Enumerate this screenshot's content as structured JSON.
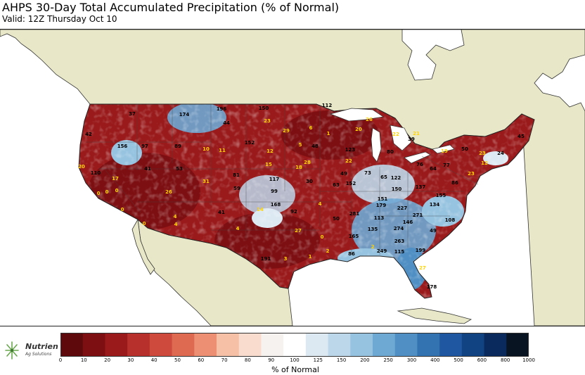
{
  "header": {
    "title": "AHPS 30-Day Total Accumulated Precipitation (% of Normal)",
    "subtitle": "Valid: 12Z Thursday Oct 10"
  },
  "logo": {
    "name": "Nutrien",
    "tagline": "Ag Solutions"
  },
  "legend": {
    "title": "% of Normal",
    "ticks": [
      "0",
      "10",
      "20",
      "30",
      "40",
      "50",
      "60",
      "70",
      "80",
      "90",
      "100",
      "125",
      "150",
      "200",
      "250",
      "300",
      "400",
      "500",
      "600",
      "800",
      "1000"
    ],
    "colors": [
      "#5e0a0d",
      "#7d0f12",
      "#9a1a1b",
      "#b7302c",
      "#cd4a3d",
      "#de6a52",
      "#ec8f73",
      "#f5c0a5",
      "#f9dccd",
      "#f6f2ef",
      "#ffffff",
      "#dde9f2",
      "#bcd7ea",
      "#96c3e0",
      "#6ea9d4",
      "#4f8fc4",
      "#3373b2",
      "#1f58a0",
      "#114281",
      "#0a2a5d",
      "#081422"
    ]
  },
  "map": {
    "land_color": "#e8e8c8",
    "water_color": "#ffffff",
    "station_labels": [
      {
        "text": "174",
        "color": "#000"
      },
      {
        "text": "196",
        "color": "#000"
      },
      {
        "text": "150",
        "color": "#000"
      },
      {
        "text": "112",
        "color": "#000"
      },
      {
        "text": "37",
        "color": "#000"
      },
      {
        "text": "44",
        "color": "#000"
      },
      {
        "text": "23",
        "color": "#ffd400"
      },
      {
        "text": "29",
        "color": "#ffd400"
      },
      {
        "text": "6",
        "color": "#ffd400"
      },
      {
        "text": "1",
        "color": "#ffd400"
      },
      {
        "text": "20",
        "color": "#ffd400"
      },
      {
        "text": "26",
        "color": "#ffd400"
      },
      {
        "text": "22",
        "color": "#ffd400"
      },
      {
        "text": "21",
        "color": "#ffd400"
      },
      {
        "text": "42",
        "color": "#000"
      },
      {
        "text": "156",
        "color": "#000"
      },
      {
        "text": "97",
        "color": "#000"
      },
      {
        "text": "89",
        "color": "#000"
      },
      {
        "text": "10",
        "color": "#ffd400"
      },
      {
        "text": "11",
        "color": "#ffd400"
      },
      {
        "text": "152",
        "color": "#000"
      },
      {
        "text": "12",
        "color": "#ffd400"
      },
      {
        "text": "5",
        "color": "#ffd400"
      },
      {
        "text": "48",
        "color": "#000"
      },
      {
        "text": "123",
        "color": "#000"
      },
      {
        "text": "80",
        "color": "#000"
      },
      {
        "text": "39",
        "color": "#000"
      },
      {
        "text": "19",
        "color": "#ffd400"
      },
      {
        "text": "50",
        "color": "#000"
      },
      {
        "text": "23",
        "color": "#ffd400"
      },
      {
        "text": "45",
        "color": "#000"
      },
      {
        "text": "24",
        "color": "#000"
      },
      {
        "text": "12",
        "color": "#ffd400"
      },
      {
        "text": "20",
        "color": "#ffd400"
      },
      {
        "text": "110",
        "color": "#000"
      },
      {
        "text": "17",
        "color": "#ffd400"
      },
      {
        "text": "41",
        "color": "#000"
      },
      {
        "text": "53",
        "color": "#000"
      },
      {
        "text": "81",
        "color": "#000"
      },
      {
        "text": "15",
        "color": "#ffd400"
      },
      {
        "text": "18",
        "color": "#ffd400"
      },
      {
        "text": "28",
        "color": "#ffd400"
      },
      {
        "text": "49",
        "color": "#000"
      },
      {
        "text": "22",
        "color": "#ffd400"
      },
      {
        "text": "73",
        "color": "#000"
      },
      {
        "text": "65",
        "color": "#000"
      },
      {
        "text": "122",
        "color": "#000"
      },
      {
        "text": "76",
        "color": "#000"
      },
      {
        "text": "64",
        "color": "#000"
      },
      {
        "text": "77",
        "color": "#000"
      },
      {
        "text": "23",
        "color": "#ffd400"
      },
      {
        "text": "0",
        "color": "#ffd400"
      },
      {
        "text": "0",
        "color": "#ffd400"
      },
      {
        "text": "0",
        "color": "#ffd400"
      },
      {
        "text": "26",
        "color": "#ffd400"
      },
      {
        "text": "31",
        "color": "#ffd400"
      },
      {
        "text": "59",
        "color": "#000"
      },
      {
        "text": "117",
        "color": "#000"
      },
      {
        "text": "30",
        "color": "#000"
      },
      {
        "text": "63",
        "color": "#000"
      },
      {
        "text": "152",
        "color": "#000"
      },
      {
        "text": "150",
        "color": "#000"
      },
      {
        "text": "137",
        "color": "#000"
      },
      {
        "text": "155",
        "color": "#000"
      },
      {
        "text": "86",
        "color": "#000"
      },
      {
        "text": "99",
        "color": "#000"
      },
      {
        "text": "168",
        "color": "#000"
      },
      {
        "text": "14",
        "color": "#ffd400"
      },
      {
        "text": "151",
        "color": "#000"
      },
      {
        "text": "179",
        "color": "#000"
      },
      {
        "text": "227",
        "color": "#000"
      },
      {
        "text": "134",
        "color": "#000"
      },
      {
        "text": "0",
        "color": "#ffd400"
      },
      {
        "text": "4",
        "color": "#ffd400"
      },
      {
        "text": "41",
        "color": "#000"
      },
      {
        "text": "92",
        "color": "#000"
      },
      {
        "text": "4",
        "color": "#ffd400"
      },
      {
        "text": "50",
        "color": "#000"
      },
      {
        "text": "281",
        "color": "#000"
      },
      {
        "text": "271",
        "color": "#000"
      },
      {
        "text": "108",
        "color": "#000"
      },
      {
        "text": "0",
        "color": "#ffd400"
      },
      {
        "text": "4",
        "color": "#ffd400"
      },
      {
        "text": "113",
        "color": "#000"
      },
      {
        "text": "146",
        "color": "#000"
      },
      {
        "text": "4",
        "color": "#ffd400"
      },
      {
        "text": "27",
        "color": "#ffd400"
      },
      {
        "text": "135",
        "color": "#000"
      },
      {
        "text": "274",
        "color": "#000"
      },
      {
        "text": "49",
        "color": "#000"
      },
      {
        "text": "165",
        "color": "#000"
      },
      {
        "text": "0",
        "color": "#ffd400"
      },
      {
        "text": "263",
        "color": "#000"
      },
      {
        "text": "2",
        "color": "#ffd400"
      },
      {
        "text": "2",
        "color": "#ffd400"
      },
      {
        "text": "86",
        "color": "#000"
      },
      {
        "text": "249",
        "color": "#000"
      },
      {
        "text": "115",
        "color": "#000"
      },
      {
        "text": "199",
        "color": "#000"
      },
      {
        "text": "191",
        "color": "#000"
      },
      {
        "text": "3",
        "color": "#ffd400"
      },
      {
        "text": "1",
        "color": "#ffd400"
      },
      {
        "text": "27",
        "color": "#ffd400"
      },
      {
        "text": "178",
        "color": "#000"
      },
      {
        "text": "85",
        "color": "#000"
      }
    ]
  }
}
